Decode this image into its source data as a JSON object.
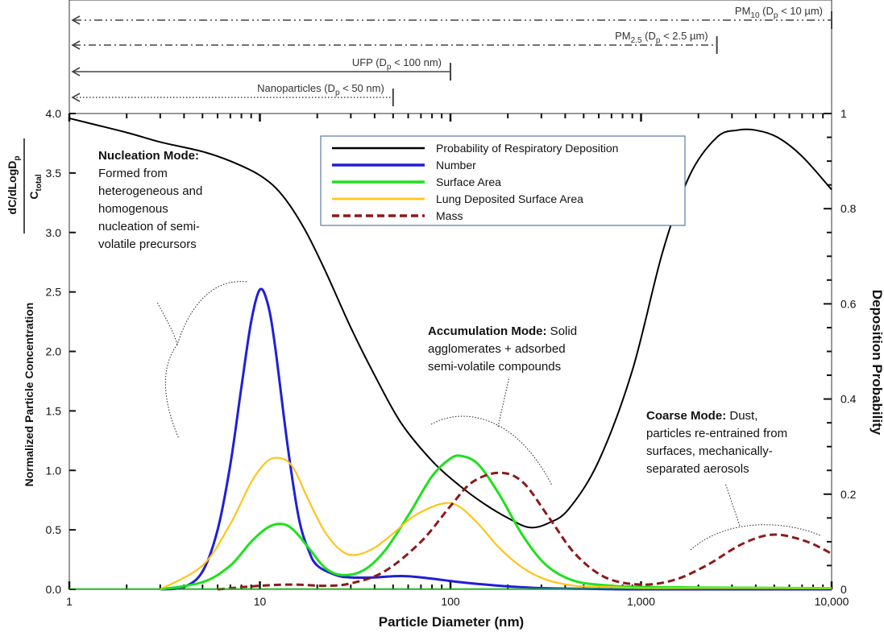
{
  "chart_data": {
    "type": "line",
    "x_scale": "log",
    "xlim": [
      1,
      10000
    ],
    "ylim": [
      0,
      4.0
    ],
    "y2lim": [
      0,
      1
    ],
    "xlabel": "Particle Diameter (nm)",
    "ylabel": "Normalized Particle Concentration",
    "ylabel_fraction": {
      "numerator": "dC/dLogDp",
      "denominator": "Ctotal"
    },
    "y2label": "Deposition Probability",
    "x_tick_labels": [
      "1",
      "10",
      "100",
      "1,000",
      "10,000"
    ],
    "y_tick_labels": [
      "0.0",
      "0.5",
      "1.0",
      "1.5",
      "2.0",
      "2.5",
      "3.0",
      "3.5",
      "4.0"
    ],
    "y2_tick_labels": [
      "0",
      "0.2",
      "0.4",
      "0.6",
      "0.8",
      "1"
    ],
    "legend_position": "top-center",
    "series": [
      {
        "name": "Probability of Respiratory Deposition",
        "axis": "right",
        "color": "#000000",
        "dash": "solid",
        "x": [
          1,
          2,
          3,
          5,
          7,
          10,
          13,
          17,
          22,
          30,
          40,
          55,
          80,
          110,
          150,
          200,
          260,
          330,
          420,
          600,
          900,
          1300,
          1800,
          2500,
          3200,
          4000,
          5200,
          7000,
          10000
        ],
        "y": [
          0.99,
          0.96,
          0.94,
          0.92,
          0.9,
          0.87,
          0.83,
          0.76,
          0.67,
          0.55,
          0.45,
          0.35,
          0.27,
          0.22,
          0.18,
          0.15,
          0.13,
          0.14,
          0.17,
          0.27,
          0.46,
          0.71,
          0.87,
          0.95,
          0.965,
          0.965,
          0.95,
          0.91,
          0.84
        ]
      },
      {
        "name": "Number",
        "axis": "left",
        "color": "#1f1fd6",
        "dash": "solid",
        "x": [
          3,
          4,
          5,
          6,
          7,
          8,
          9,
          10,
          11,
          12,
          14,
          16,
          18,
          20,
          25,
          30,
          40,
          50,
          60,
          80,
          100,
          130,
          200,
          300,
          500,
          1000,
          10000
        ],
        "y": [
          0.0,
          0.02,
          0.15,
          0.5,
          1.05,
          1.7,
          2.25,
          2.52,
          2.4,
          2.05,
          1.2,
          0.6,
          0.33,
          0.2,
          0.12,
          0.1,
          0.1,
          0.11,
          0.11,
          0.09,
          0.07,
          0.05,
          0.025,
          0.01,
          0.005,
          0.0,
          0.0
        ]
      },
      {
        "name": "Surface Area",
        "axis": "left",
        "color": "#1fe01f",
        "dash": "solid",
        "x": [
          3,
          5,
          7,
          9,
          11,
          13,
          15,
          18,
          22,
          27,
          35,
          45,
          60,
          80,
          100,
          115,
          140,
          180,
          240,
          320,
          450,
          700,
          1000,
          2000,
          10000
        ],
        "y": [
          0.0,
          0.06,
          0.2,
          0.4,
          0.52,
          0.55,
          0.5,
          0.35,
          0.18,
          0.12,
          0.16,
          0.32,
          0.62,
          0.95,
          1.1,
          1.12,
          1.05,
          0.8,
          0.45,
          0.2,
          0.07,
          0.03,
          0.02,
          0.015,
          0.01
        ]
      },
      {
        "name": "Lung Deposited Surface Area",
        "axis": "left",
        "color": "#ffc41a",
        "dash": "solid",
        "x": [
          3,
          5,
          7,
          9,
          11,
          13,
          15,
          18,
          22,
          27,
          32,
          40,
          50,
          65,
          90,
          110,
          140,
          180,
          240,
          320,
          450,
          700,
          1000,
          2000,
          10000
        ],
        "y": [
          0.0,
          0.2,
          0.55,
          0.9,
          1.08,
          1.1,
          1.02,
          0.75,
          0.48,
          0.32,
          0.29,
          0.35,
          0.47,
          0.62,
          0.72,
          0.7,
          0.55,
          0.35,
          0.18,
          0.08,
          0.03,
          0.02,
          0.01,
          0.01,
          0.01
        ]
      },
      {
        "name": "Mass",
        "axis": "left",
        "color": "#8b1a1a",
        "dash": "dashed",
        "x": [
          6,
          10,
          15,
          22,
          30,
          45,
          70,
          100,
          130,
          180,
          240,
          330,
          450,
          650,
          1000,
          1500,
          2200,
          3200,
          4200,
          5200,
          6500,
          8000,
          10000
        ],
        "y": [
          0.0,
          0.03,
          0.04,
          0.03,
          0.05,
          0.15,
          0.4,
          0.7,
          0.9,
          0.98,
          0.9,
          0.6,
          0.3,
          0.1,
          0.04,
          0.08,
          0.2,
          0.36,
          0.44,
          0.46,
          0.43,
          0.38,
          0.3
        ]
      }
    ],
    "size_ranges": [
      {
        "label": "PM",
        "sub": "10",
        "rest": " (D",
        "sub2": "p",
        "tail": " < 10 µm)",
        "upper": 10000,
        "dash": "dashdotdot"
      },
      {
        "label": "PM",
        "sub": "2.5",
        "rest": " (D",
        "sub2": "p",
        "tail": " < 2.5 µm)",
        "upper": 2500,
        "dash": "dashdot"
      },
      {
        "label": "UFP (D",
        "sub": "p",
        "rest": " < 100 nm)",
        "sub2": "",
        "tail": "",
        "upper": 100,
        "dash": "solid"
      },
      {
        "label": "Nanoparticles (D",
        "sub": "p",
        "rest": " < 50 nm)",
        "sub2": "",
        "tail": "",
        "upper": 50,
        "dash": "dotted"
      }
    ],
    "annotations": [
      {
        "title": "Nucleation Mode:",
        "lines": [
          "Formed from",
          "heterogeneous and",
          "homogenous",
          "nucleation of semi-",
          "volatile precursors"
        ]
      },
      {
        "title": "Accumulation Mode:",
        "title_tail": " Solid",
        "lines": [
          "agglomerates + adsorbed",
          "semi-volatile compounds"
        ]
      },
      {
        "title": "Coarse Mode:",
        "title_tail": " Dust,",
        "lines": [
          "particles re-entrained from",
          "surfaces, mechanically-",
          "separated aerosols"
        ]
      }
    ]
  }
}
